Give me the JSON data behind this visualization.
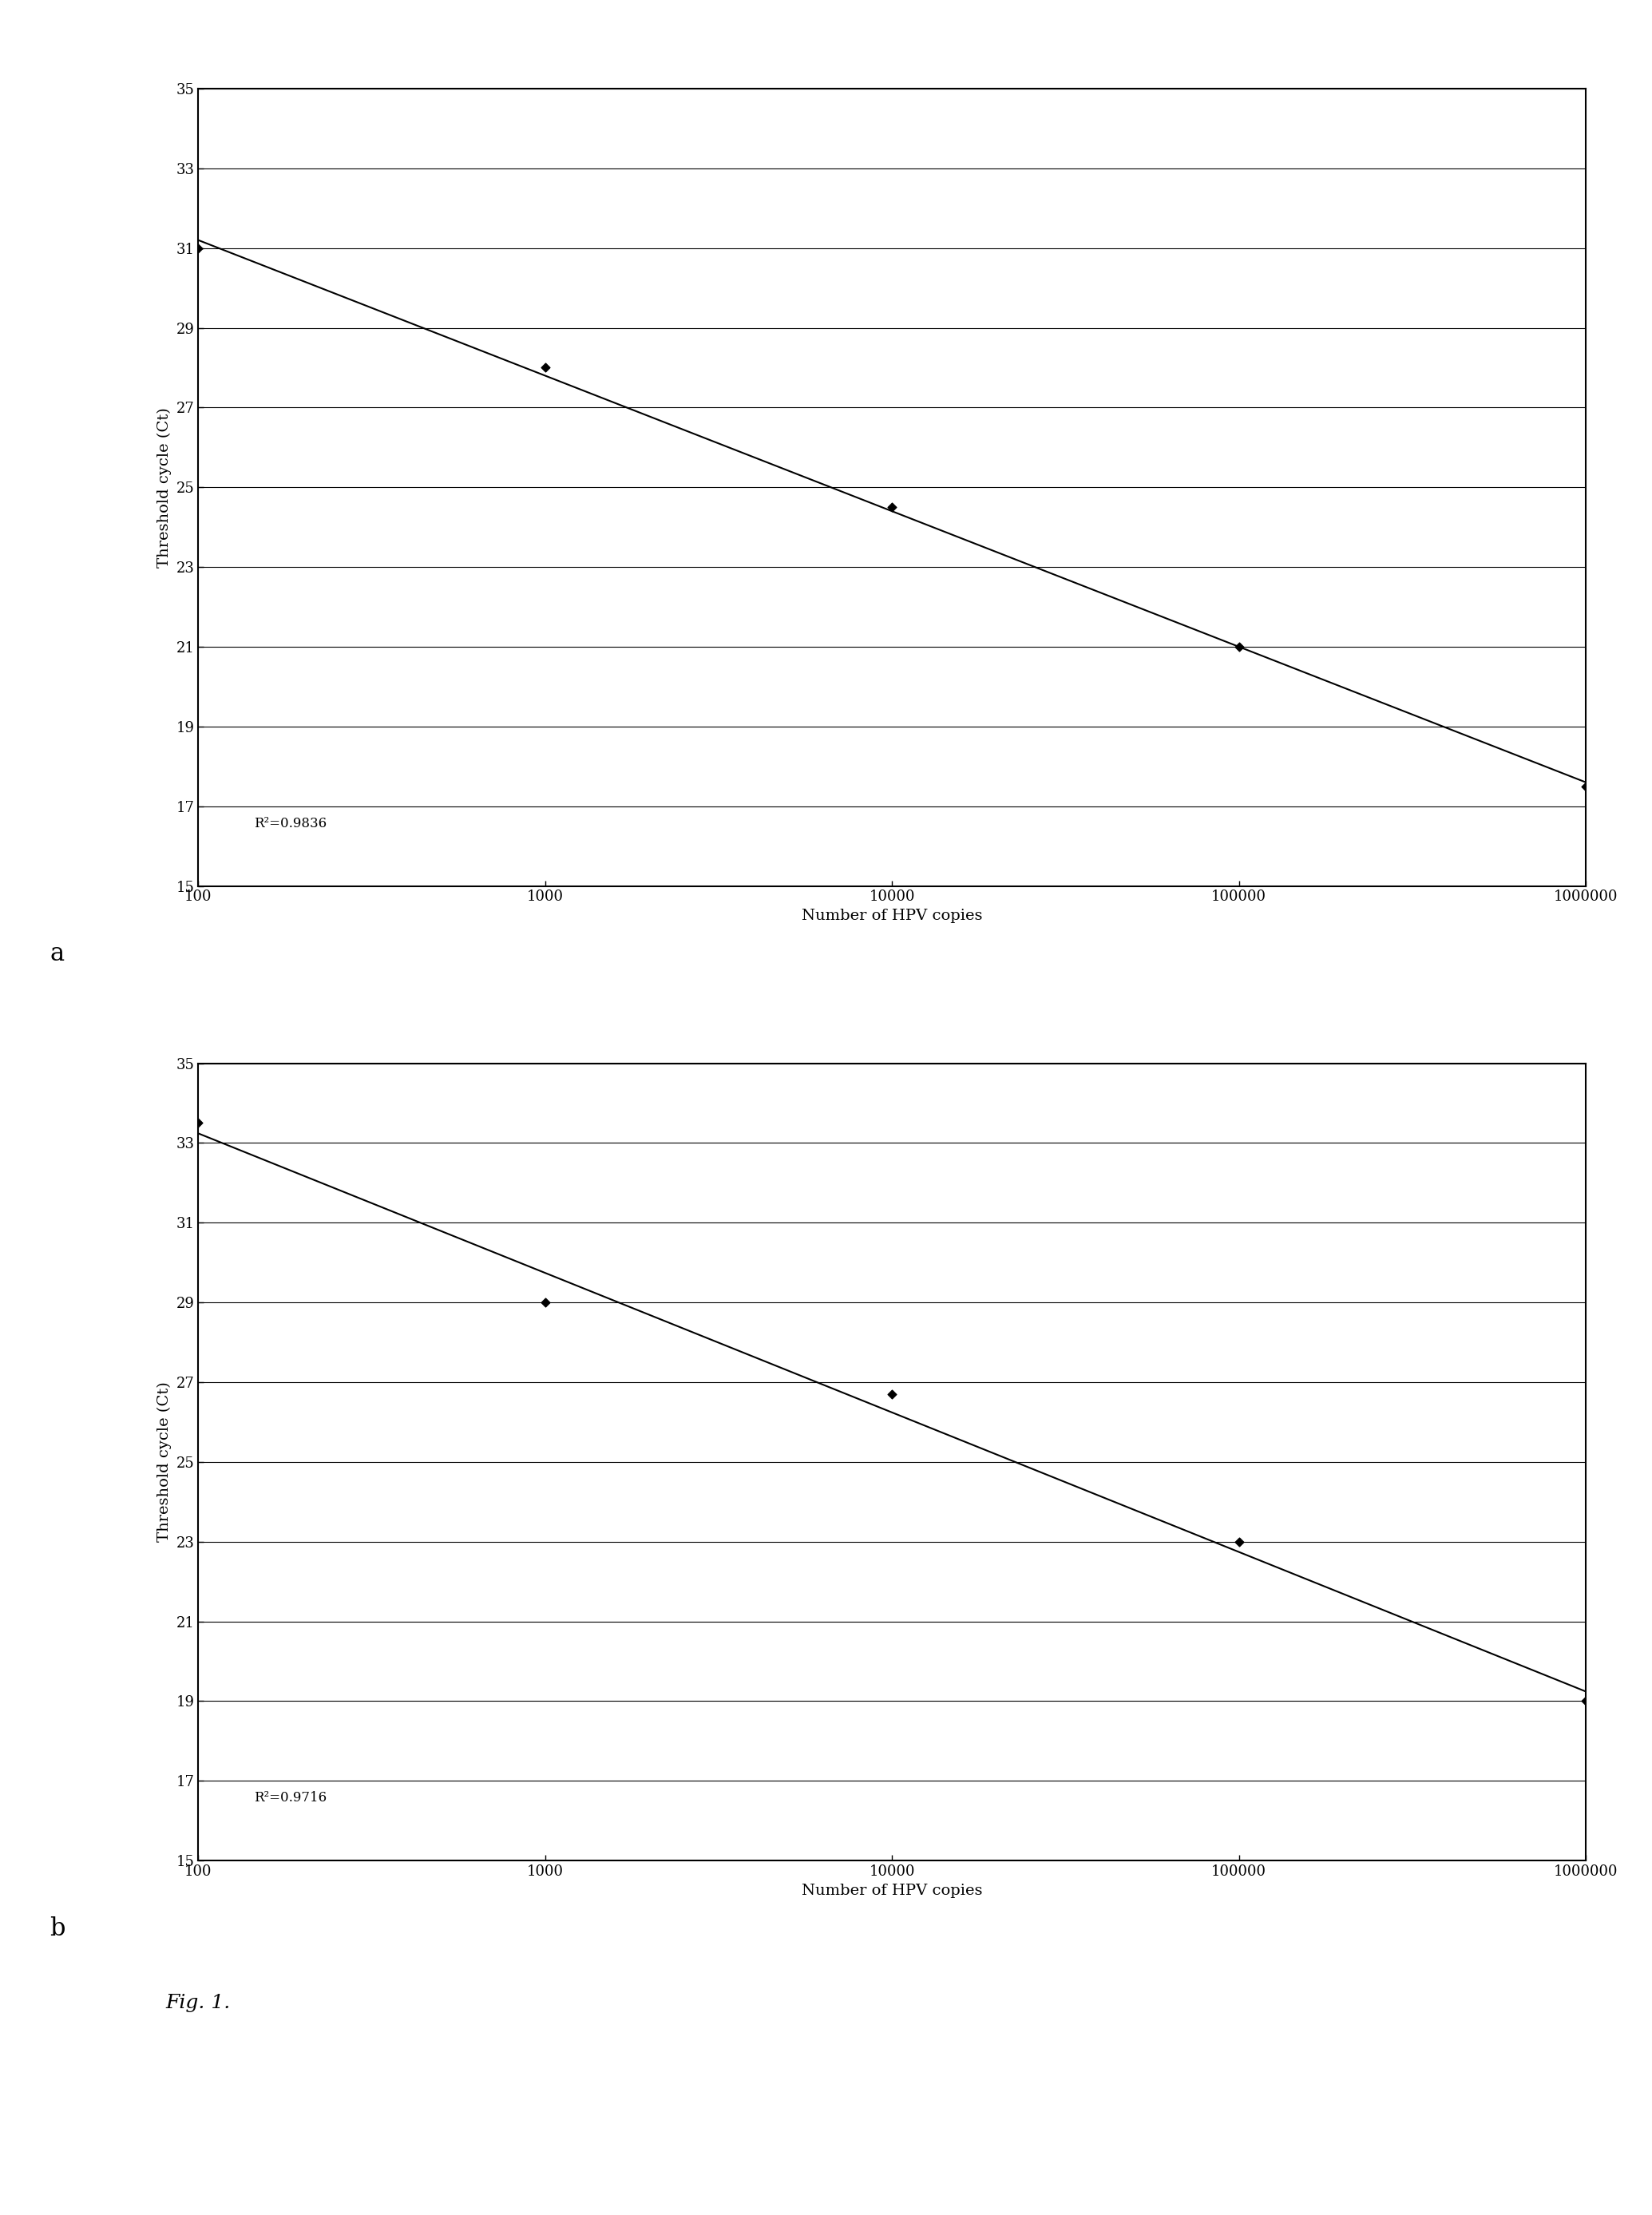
{
  "chart_a": {
    "x_data": [
      100,
      1000,
      10000,
      100000,
      1000000
    ],
    "y_data": [
      31.0,
      28.0,
      24.5,
      21.0,
      17.5
    ],
    "r2": "R²=0.9836"
  },
  "chart_b": {
    "x_data": [
      100,
      1000,
      10000,
      100000,
      1000000
    ],
    "y_data": [
      33.5,
      29.0,
      26.7,
      23.0,
      19.0
    ],
    "r2": "R²=0.9716"
  },
  "xlabel": "Number of HPV copies",
  "ylabel": "Threshold cycle (Ct)",
  "xmin": 100,
  "xmax": 1000000,
  "ymin": 15,
  "ymax": 35,
  "yticks": [
    15,
    17,
    19,
    21,
    23,
    25,
    27,
    29,
    31,
    33,
    35
  ],
  "xtick_labels": [
    "100",
    "1000",
    "10000",
    "100000",
    "1000000"
  ],
  "label_a": "a",
  "label_b": "b",
  "fig_label": "Fig. 1.",
  "bg_color": "#ffffff",
  "line_color": "#000000",
  "marker_color": "#000000",
  "text_color": "#000000"
}
